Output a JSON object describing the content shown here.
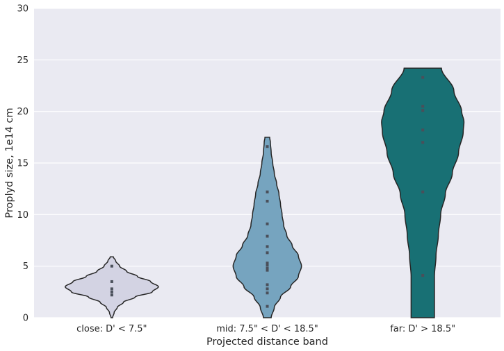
{
  "chart_data": {
    "type": "violin",
    "title": "",
    "xlabel": "Projected distance band",
    "ylabel": "Proplyd size, 1e14 cm",
    "ylim": [
      0,
      30
    ],
    "yticks": [
      0,
      5,
      10,
      15,
      20,
      25,
      30
    ],
    "grid": true,
    "categories": [
      "close: D' < 7.5\"",
      "mid: 7.5\" < D' < 18.5\"",
      "far: D' > 18.5\""
    ],
    "series": [
      {
        "category": "close: D' < 7.5\"",
        "color": "#d3d3e3",
        "points": [
          5.0,
          3.5,
          2.8,
          2.5,
          2.2
        ],
        "cut_range": [
          0,
          5.9
        ],
        "density_half_width": [
          [
            0.0,
            0.01
          ],
          [
            0.5,
            0.03
          ],
          [
            1.0,
            0.07
          ],
          [
            1.5,
            0.15
          ],
          [
            2.0,
            0.3
          ],
          [
            2.5,
            0.52
          ],
          [
            3.0,
            0.6
          ],
          [
            3.5,
            0.5
          ],
          [
            4.0,
            0.33
          ],
          [
            4.5,
            0.19
          ],
          [
            5.0,
            0.1
          ],
          [
            5.5,
            0.05
          ],
          [
            5.9,
            0.02
          ]
        ]
      },
      {
        "category": "mid: 7.5\" < D' < 18.5\"",
        "color": "#76a4bf",
        "points": [
          16.6,
          12.2,
          11.3,
          9.1,
          7.9,
          6.9,
          6.3,
          5.3,
          5.1,
          4.8,
          4.6,
          3.2,
          2.8,
          2.4,
          1.1
        ],
        "cut_range": [
          0,
          17.5
        ],
        "density_half_width": [
          [
            0.0,
            0.05
          ],
          [
            1.0,
            0.09
          ],
          [
            2.0,
            0.17
          ],
          [
            3.0,
            0.3
          ],
          [
            4.0,
            0.4
          ],
          [
            5.0,
            0.44
          ],
          [
            6.0,
            0.4
          ],
          [
            7.0,
            0.32
          ],
          [
            8.0,
            0.25
          ],
          [
            9.0,
            0.21
          ],
          [
            10.0,
            0.19
          ],
          [
            11.0,
            0.17
          ],
          [
            12.0,
            0.15
          ],
          [
            13.0,
            0.12
          ],
          [
            14.0,
            0.09
          ],
          [
            15.0,
            0.07
          ],
          [
            16.0,
            0.05
          ],
          [
            17.0,
            0.04
          ],
          [
            17.5,
            0.03
          ]
        ]
      },
      {
        "category": "far: D' > 18.5\"",
        "color": "#187074",
        "points": [
          23.3,
          20.5,
          20.1,
          18.2,
          17.0,
          12.2,
          4.1
        ],
        "cut_range": [
          0,
          24.2
        ],
        "density_half_width": [
          [
            0.0,
            0.15
          ],
          [
            2.0,
            0.15
          ],
          [
            4.0,
            0.15
          ],
          [
            6.0,
            0.17
          ],
          [
            8.0,
            0.2
          ],
          [
            10.0,
            0.23
          ],
          [
            12.0,
            0.29
          ],
          [
            14.0,
            0.38
          ],
          [
            16.0,
            0.46
          ],
          [
            18.0,
            0.52
          ],
          [
            19.0,
            0.53
          ],
          [
            20.0,
            0.5
          ],
          [
            22.0,
            0.4
          ],
          [
            24.2,
            0.24
          ]
        ]
      }
    ]
  }
}
